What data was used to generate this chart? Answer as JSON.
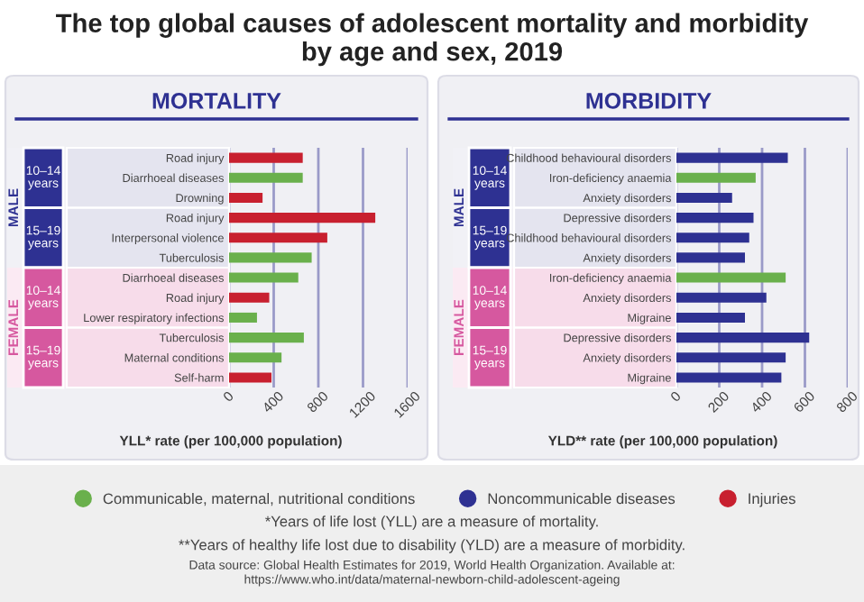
{
  "chart_data": [
    {
      "type": "bar",
      "orientation": "horizontal",
      "title": "MORTALITY",
      "xlabel": "YLL* rate (per 100,000 population)",
      "categories": [
        "Road injury",
        "Diarrhoeal diseases",
        "Drowning",
        "Road injury",
        "Interpersonal violence",
        "Tuberculosis",
        "Diarrhoeal diseases",
        "Road injury",
        "Lower respiratory infections",
        "Tuberculosis",
        "Maternal conditions",
        "Self-harm"
      ],
      "series": [
        {
          "name": "Communicable, maternal, nutritional conditions",
          "color": "#6ab04c",
          "values": [
            null,
            660,
            null,
            null,
            null,
            740,
            620,
            null,
            250,
            670,
            470,
            null
          ]
        },
        {
          "name": "Injuries",
          "color": "#c8202f",
          "values": [
            660,
            null,
            300,
            1310,
            880,
            null,
            null,
            360,
            null,
            null,
            null,
            380
          ]
        }
      ],
      "xlim": [
        0,
        1600
      ],
      "xticks": [
        0,
        400,
        800,
        1200,
        1600
      ],
      "grid": "x",
      "legend": "bottom",
      "annotations": [
        "MALE",
        "10–14 years",
        "15–19 years",
        "FEMALE",
        "10–14 years",
        "15–19 years"
      ]
    },
    {
      "type": "bar",
      "orientation": "horizontal",
      "title": "MORBIDITY",
      "xlabel": "YLD** rate (per 100,000 population)",
      "categories": [
        "Childhood behavioural disorders",
        "Iron-deficiency anaemia",
        "Anxiety disorders",
        "Depressive disorders",
        "Childhood behavioural disorders",
        "Anxiety disorders",
        "Iron-deficiency anaemia",
        "Anxiety disorders",
        "Migraine",
        "Depressive disorders",
        "Anxiety disorders",
        "Migraine"
      ],
      "series": [
        {
          "name": "Communicable, maternal, nutritional conditions",
          "color": "#6ab04c",
          "values": [
            null,
            370,
            null,
            null,
            null,
            null,
            510,
            null,
            null,
            null,
            null,
            null
          ]
        },
        {
          "name": "Noncommunicable diseases",
          "color": "#2e3192",
          "values": [
            520,
            null,
            260,
            360,
            340,
            320,
            null,
            420,
            320,
            620,
            510,
            490
          ]
        }
      ],
      "xlim": [
        0,
        800
      ],
      "xticks": [
        0,
        200,
        400,
        600,
        800
      ],
      "grid": "x",
      "legend": "bottom",
      "annotations": [
        "MALE",
        "10–14 years",
        "15–19 years",
        "FEMALE",
        "10–14 years",
        "15–19 years"
      ]
    },
    {
      "type": "other",
      "title": "The top global causes of adolescent mortality and morbidity\nby age and sex, 2019",
      "annotations": [
        "*Years of life lost (YLL) are a measure of mortality.",
        "**Years of healthy life lost due to disability (YLD) are a measure of morbidity.",
        "Data source: Global Health Estimates for 2019, World Health Organization. Available at:\nhttps://www.who.int/data/maternal-newborn-child-adolescent-ageing"
      ]
    }
  ]
}
